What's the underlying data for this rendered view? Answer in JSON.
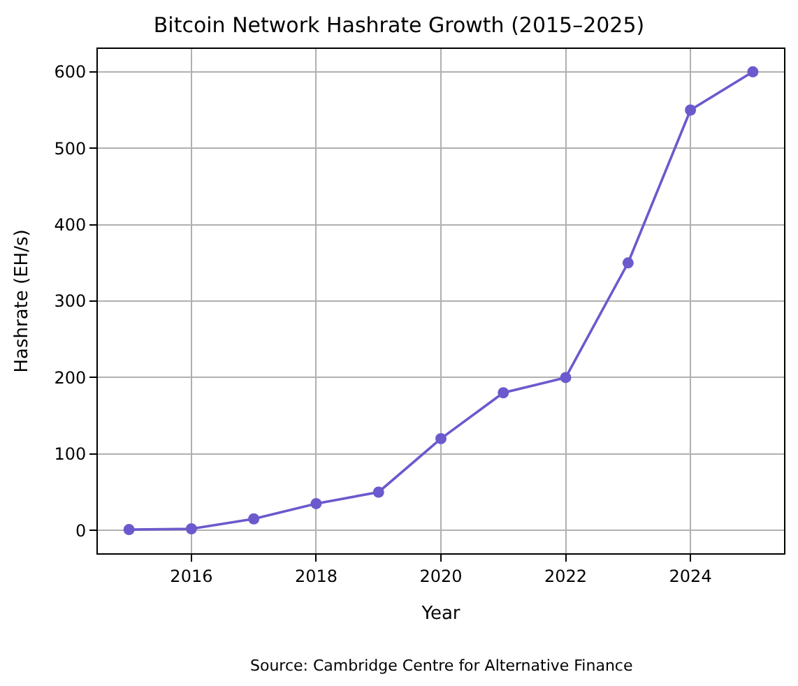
{
  "chart_data": {
    "type": "line",
    "title": "Bitcoin Network Hashrate Growth (2015–2025)",
    "xlabel": "Year",
    "ylabel": "Hashrate (EH/s)",
    "x": [
      2015,
      2016,
      2017,
      2018,
      2019,
      2020,
      2021,
      2022,
      2023,
      2024,
      2025
    ],
    "series": [
      {
        "color": "#6a5acd",
        "values": [
          1,
          2,
          15,
          35,
          50,
          120,
          180,
          200,
          350,
          550,
          600
        ]
      }
    ],
    "xlim": [
      2014.5,
      2025.5
    ],
    "xticks": [
      2016,
      2018,
      2020,
      2022,
      2024
    ],
    "ylim": [
      -30,
      630
    ],
    "yticks": [
      0,
      100,
      200,
      300,
      400,
      500,
      600
    ],
    "grid": true,
    "marker": "circle",
    "line_style": "solid",
    "annotations": [
      "Source: Cambridge Centre for Alternative Finance"
    ]
  }
}
